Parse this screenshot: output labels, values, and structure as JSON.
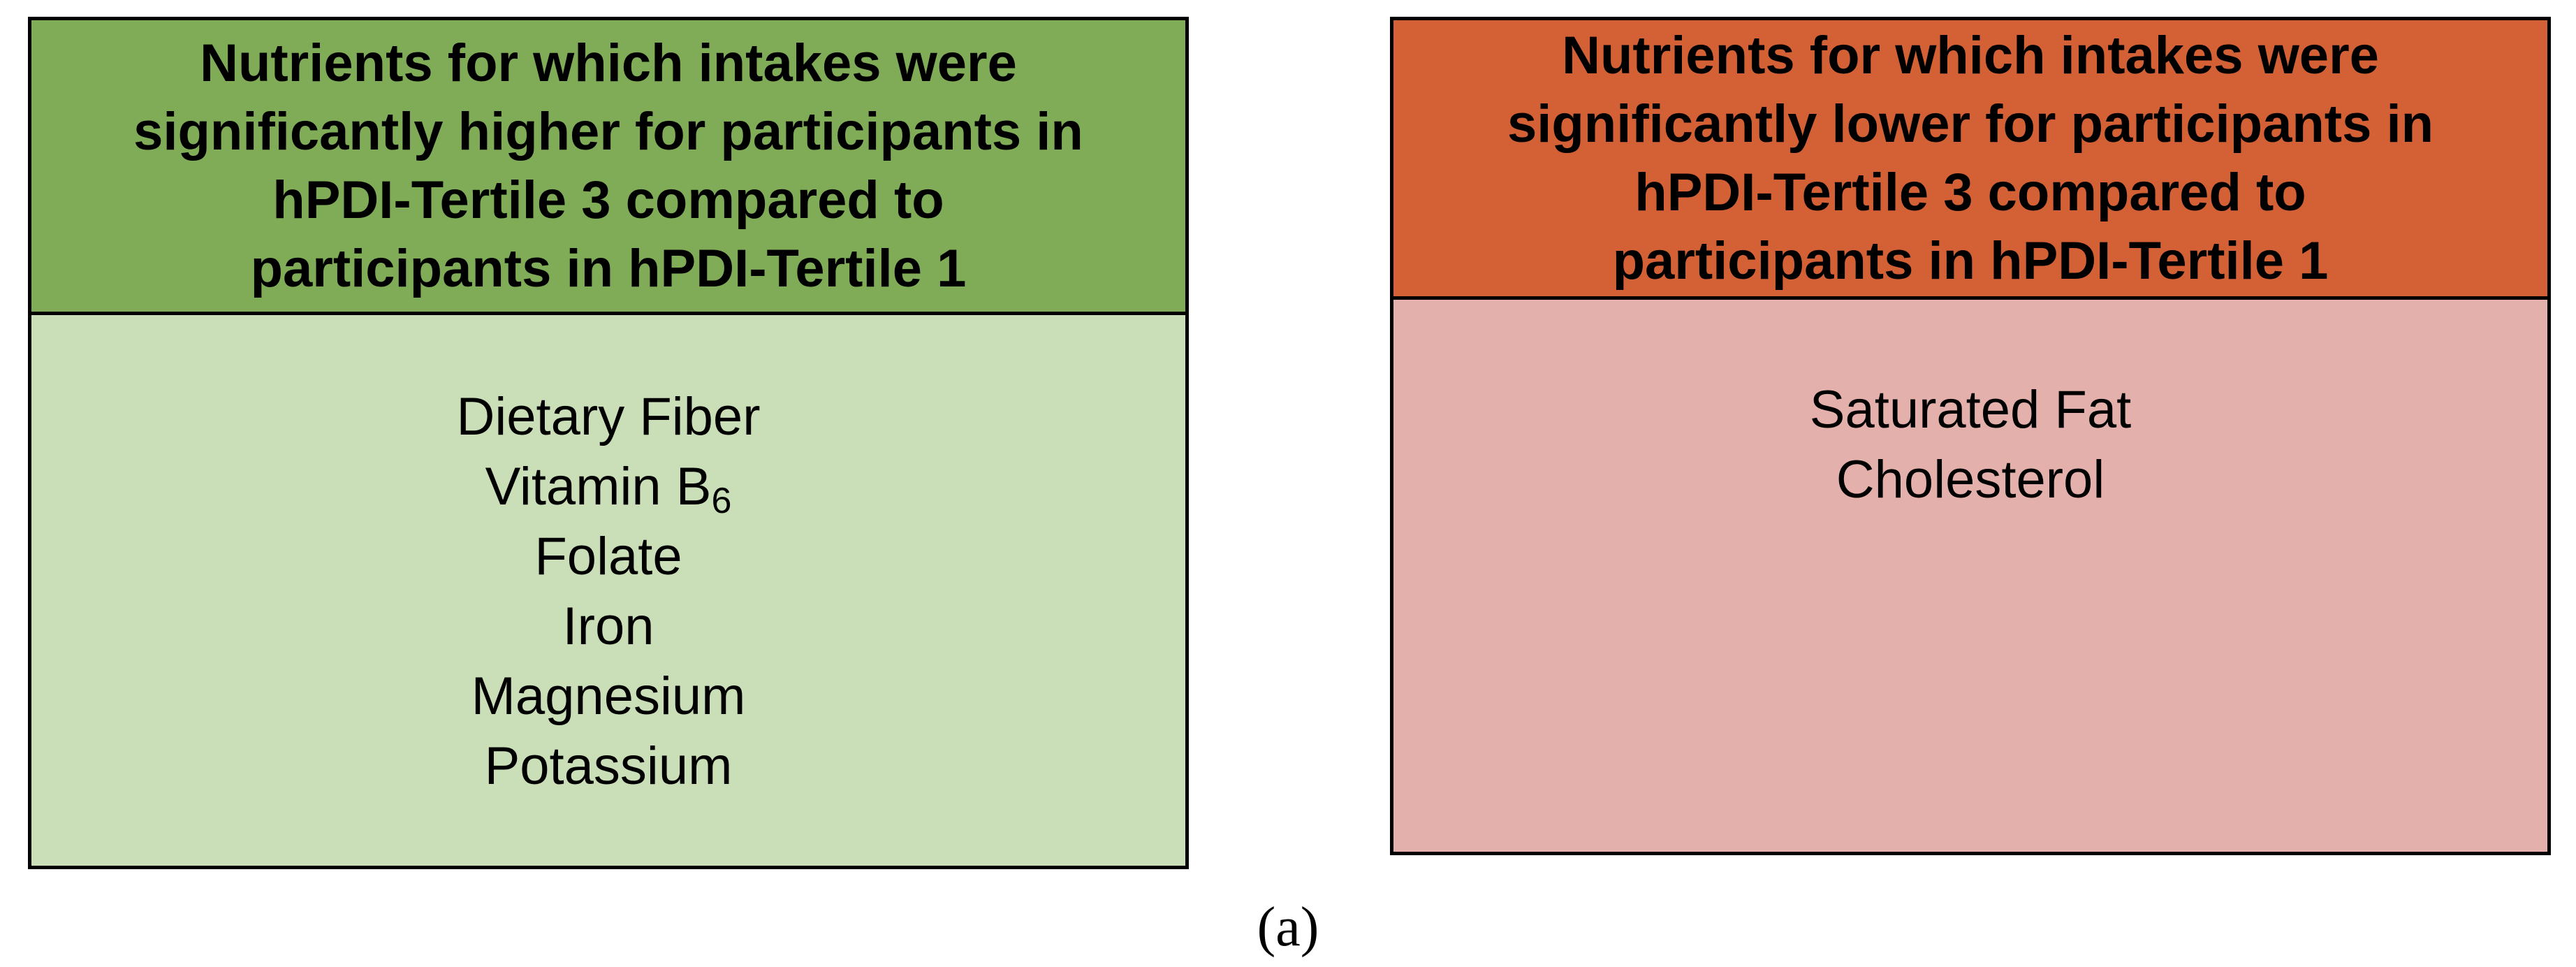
{
  "panels": {
    "higher": {
      "title": "Nutrients for which intakes were\nsignificantly higher for participants in\nhPDI-Tertile 3 compared to\nparticipants in hPDI-Tertile 1",
      "header_color": "#80ac58",
      "body_color": "#cadfb8",
      "items": [
        "Dietary Fiber",
        "Vitamin B",
        "Folate",
        "Iron",
        "Magnesium",
        "Potassium"
      ],
      "vitamin_subscript": "6"
    },
    "lower": {
      "title": "Nutrients for which intakes were\nsignificantly lower for participants in\nhPDI-Tertile 3 compared to\nparticipants in hPDI-Tertile 1",
      "header_color": "#d36135",
      "body_color": "#e4b0ab",
      "items": [
        "Saturated Fat",
        "Cholesterol"
      ]
    }
  },
  "caption": "(a)"
}
